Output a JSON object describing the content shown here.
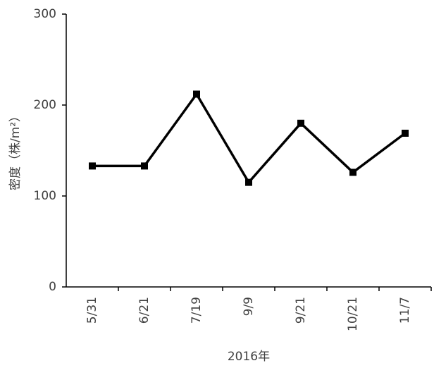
{
  "chart_data": {
    "type": "line",
    "title": "",
    "xlabel": "2016年",
    "ylabel": "密度（株/m²）",
    "categories": [
      "5/31",
      "6/21",
      "7/19",
      "9/9",
      "9/21",
      "10/21",
      "11/7"
    ],
    "values": [
      133,
      133,
      212,
      115,
      180,
      126,
      169
    ],
    "ylim": [
      0,
      300
    ],
    "yticks": [
      0,
      100,
      200,
      300
    ],
    "grid": false,
    "legend": "none",
    "marker": "square",
    "line_color": "#000000",
    "axis_color": "#000000",
    "text_color": "#404040"
  }
}
